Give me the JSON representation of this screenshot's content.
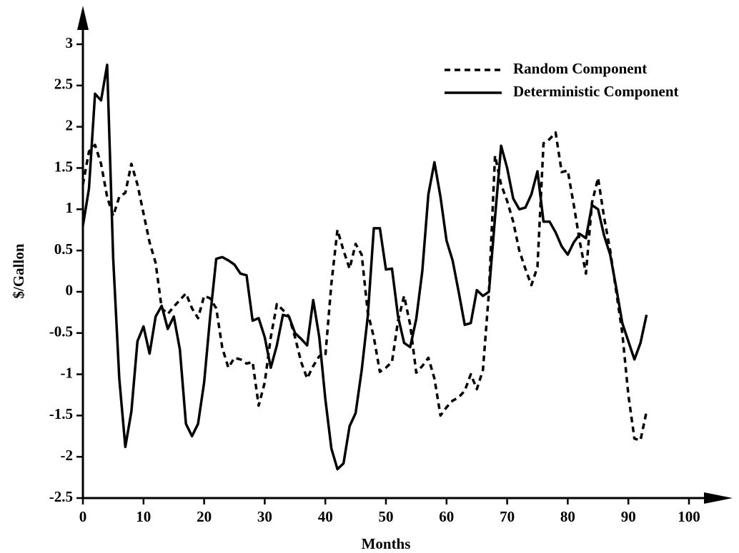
{
  "chart_data": {
    "type": "line",
    "xlabel": "Months",
    "ylabel": "$/Gallon",
    "x": [
      0,
      1,
      2,
      3,
      4,
      5,
      6,
      7,
      8,
      9,
      10,
      11,
      12,
      13,
      14,
      15,
      16,
      17,
      18,
      19,
      20,
      21,
      22,
      23,
      24,
      25,
      26,
      27,
      28,
      29,
      30,
      31,
      32,
      33,
      34,
      35,
      36,
      37,
      38,
      39,
      40,
      41,
      42,
      43,
      44,
      45,
      46,
      47,
      48,
      49,
      50,
      51,
      52,
      53,
      54,
      55,
      56,
      57,
      58,
      59,
      60,
      61,
      62,
      63,
      64,
      65,
      66,
      67,
      68,
      69,
      70,
      71,
      72,
      73,
      74,
      75,
      76,
      77,
      78,
      79,
      80,
      81,
      82,
      83,
      84,
      85,
      86,
      87,
      88,
      89,
      90,
      91,
      92,
      93
    ],
    "series": [
      {
        "name": "Random Component",
        "color": "#000000",
        "dash": true,
        "values": [
          1.3,
          1.7,
          1.78,
          1.55,
          1.15,
          0.92,
          1.15,
          1.2,
          1.55,
          1.3,
          0.95,
          0.6,
          0.35,
          -0.2,
          -0.27,
          -0.18,
          -0.1,
          -0.02,
          -0.2,
          -0.32,
          -0.05,
          -0.08,
          -0.2,
          -0.68,
          -0.92,
          -0.8,
          -0.82,
          -0.87,
          -0.85,
          -1.38,
          -1.1,
          -0.55,
          -0.15,
          -0.22,
          -0.3,
          -0.55,
          -0.85,
          -1.05,
          -0.9,
          -0.78,
          -0.78,
          0.1,
          0.75,
          0.5,
          0.28,
          0.58,
          0.45,
          -0.25,
          -0.55,
          -0.97,
          -0.92,
          -0.85,
          -0.35,
          -0.05,
          -0.4,
          -0.98,
          -0.9,
          -0.8,
          -1.05,
          -1.5,
          -1.4,
          -1.32,
          -1.28,
          -1.2,
          -1.0,
          -1.18,
          -0.95,
          0.0,
          1.65,
          1.3,
          1.1,
          0.85,
          0.5,
          0.28,
          0.08,
          0.3,
          1.8,
          1.85,
          1.93,
          1.45,
          1.47,
          1.05,
          0.6,
          0.22,
          1.08,
          1.38,
          0.9,
          0.5,
          0.0,
          -0.5,
          -1.25,
          -1.78,
          -1.8,
          -1.45
        ]
      },
      {
        "name": "Deterministic Component",
        "color": "#000000",
        "dash": false,
        "values": [
          0.8,
          1.25,
          2.4,
          2.32,
          2.75,
          0.4,
          -1.05,
          -1.88,
          -1.45,
          -0.6,
          -0.42,
          -0.75,
          -0.3,
          -0.17,
          -0.45,
          -0.3,
          -0.7,
          -1.6,
          -1.75,
          -1.6,
          -1.1,
          -0.3,
          0.4,
          0.42,
          0.38,
          0.33,
          0.22,
          0.2,
          -0.35,
          -0.32,
          -0.55,
          -0.92,
          -0.65,
          -0.28,
          -0.3,
          -0.5,
          -0.57,
          -0.65,
          -0.1,
          -0.55,
          -1.3,
          -1.9,
          -2.15,
          -2.08,
          -1.63,
          -1.47,
          -0.95,
          -0.3,
          0.77,
          0.77,
          0.27,
          0.28,
          -0.3,
          -0.62,
          -0.67,
          -0.33,
          0.25,
          1.18,
          1.57,
          1.15,
          0.62,
          0.38,
          0.0,
          -0.4,
          -0.38,
          0.02,
          -0.05,
          0.0,
          0.9,
          1.77,
          1.5,
          1.13,
          1.0,
          1.02,
          1.18,
          1.46,
          0.85,
          0.85,
          0.72,
          0.55,
          0.45,
          0.6,
          0.7,
          0.65,
          1.05,
          1.0,
          0.68,
          0.45,
          0.05,
          -0.38,
          -0.6,
          -0.82,
          -0.62,
          -0.28
        ]
      }
    ],
    "xlim": [
      0,
      100
    ],
    "xticks": [
      0,
      10,
      20,
      30,
      40,
      50,
      60,
      70,
      80,
      90,
      100
    ],
    "ylim": [
      -2.5,
      3
    ],
    "yticks": [
      -2.5,
      -2,
      -1.5,
      -1,
      -0.5,
      0,
      0.5,
      1,
      1.5,
      2,
      2.5,
      3
    ],
    "grid": false,
    "legend": "upper right"
  }
}
